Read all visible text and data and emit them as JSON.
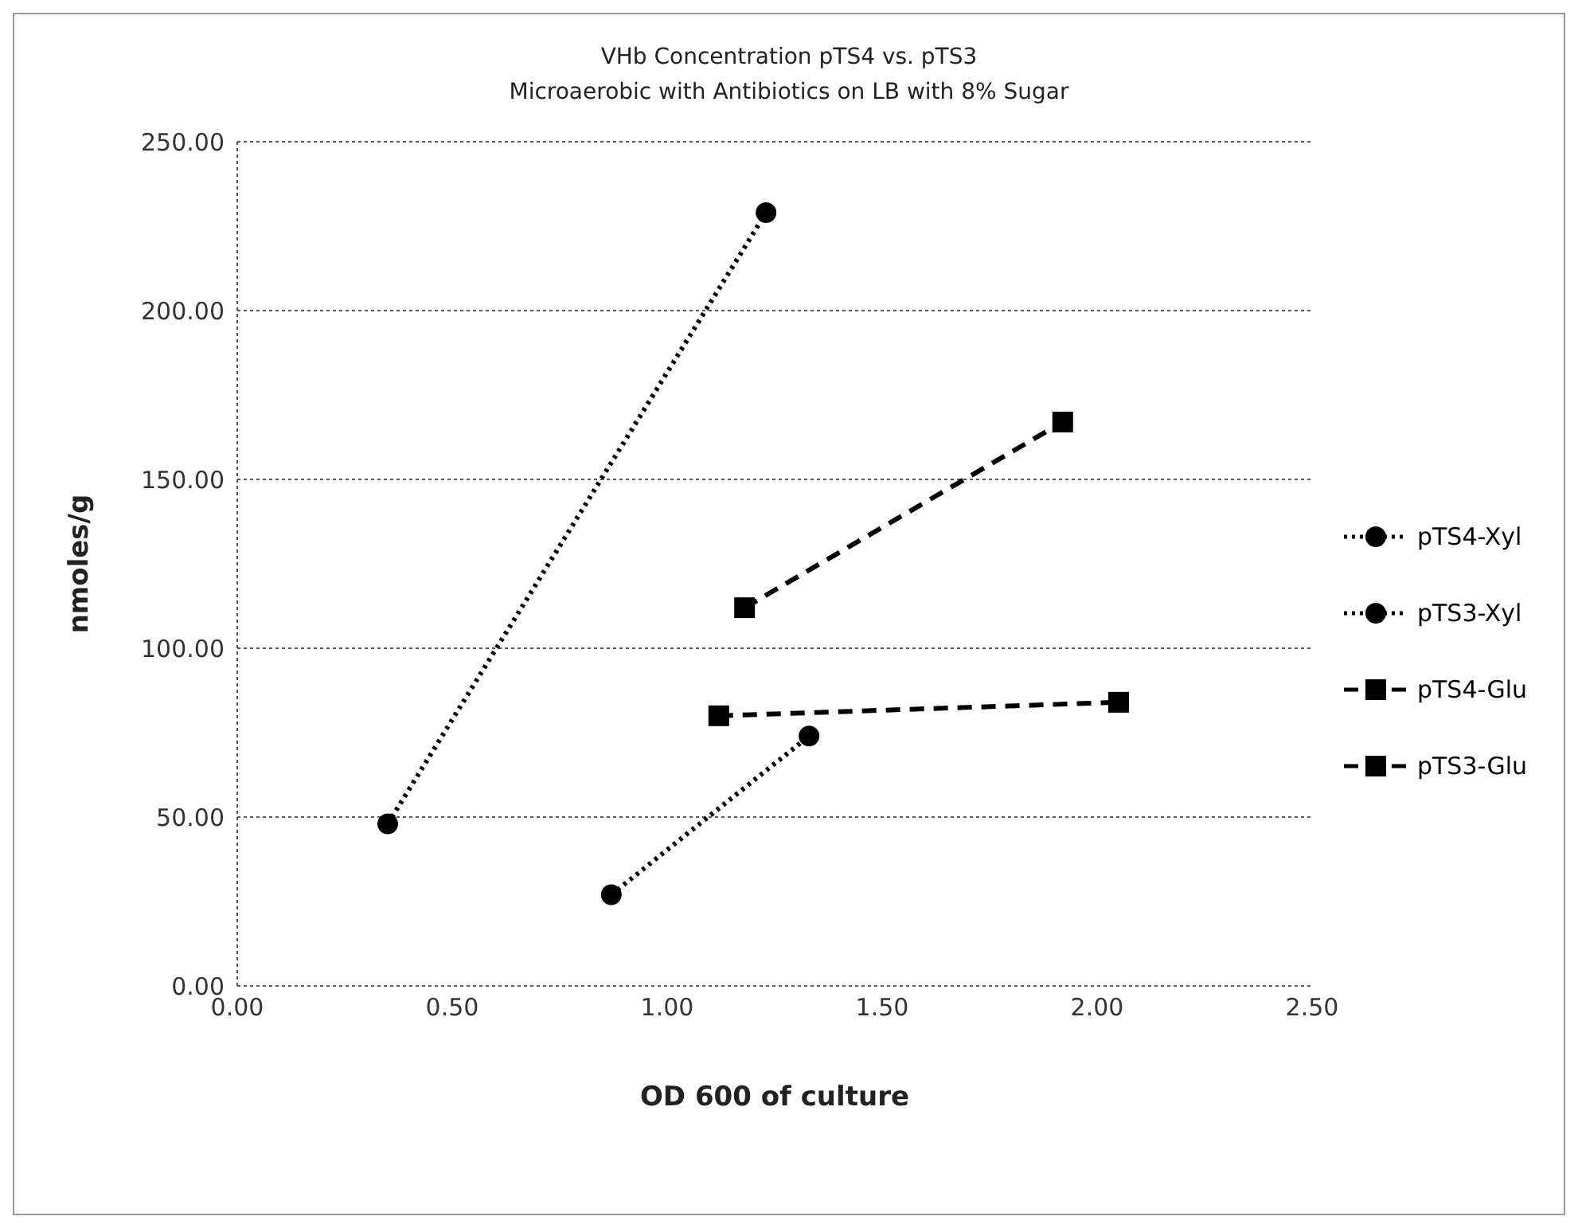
{
  "chart_data": {
    "type": "line",
    "title": "VHb Concentration pTS4 vs. pTS3",
    "subtitle": "Microaerobic with Antibiotics on LB with 8% Sugar",
    "xlabel": "OD 600 of culture",
    "ylabel": "nmoles/g",
    "xlim": [
      0,
      2.5
    ],
    "xticks": [
      {
        "value": 0,
        "label": "0.00"
      },
      {
        "value": 0.5,
        "label": "0.50"
      },
      {
        "value": 1,
        "label": "1.00"
      },
      {
        "value": 1.5,
        "label": "1.50"
      },
      {
        "value": 2,
        "label": "2.00"
      },
      {
        "value": 2.5,
        "label": "2.50"
      }
    ],
    "ylim": [
      0,
      250
    ],
    "yticks": [
      {
        "value": 0,
        "label": "0.00"
      },
      {
        "value": 50,
        "label": "50.00"
      },
      {
        "value": 100,
        "label": "100.00"
      },
      {
        "value": 150,
        "label": "150.00"
      },
      {
        "value": 200,
        "label": "200.00"
      },
      {
        "value": 250,
        "label": "250.00"
      }
    ],
    "grid": "y",
    "legend": "right",
    "series": [
      {
        "name": "pTS4-Xyl",
        "color": "#000000",
        "x": [
          0.35,
          1.23
        ],
        "values": [
          48,
          229
        ],
        "marker": "circle",
        "line_style": "dotted"
      },
      {
        "name": "pTS3-Xyl",
        "color": "#000000",
        "x": [
          0.87,
          1.33
        ],
        "values": [
          27,
          74
        ],
        "marker": "circle",
        "line_style": "dotted"
      },
      {
        "name": "pTS4-Glu",
        "color": "#000000",
        "x": [
          1.18,
          1.92
        ],
        "values": [
          112,
          167
        ],
        "marker": "square",
        "line_style": "dashed"
      },
      {
        "name": "pTS3-Glu",
        "color": "#000000",
        "x": [
          1.12,
          2.05
        ],
        "values": [
          80,
          84
        ],
        "marker": "square",
        "line_style": "dashed"
      }
    ]
  }
}
